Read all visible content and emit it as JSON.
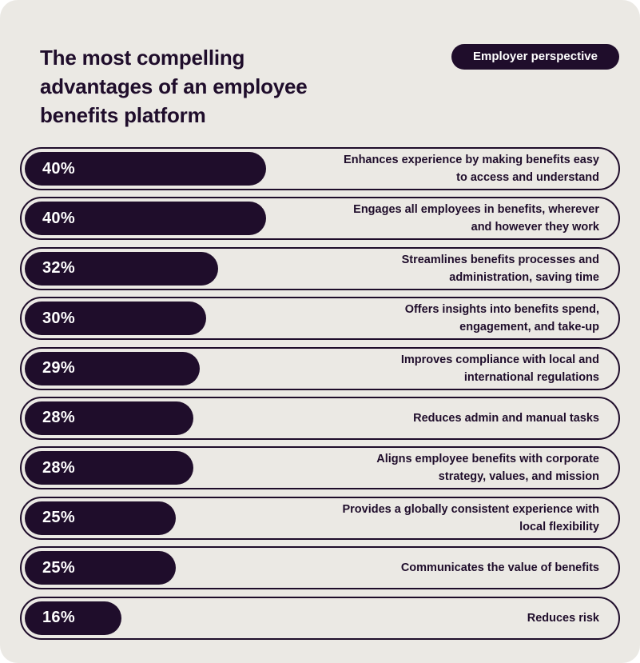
{
  "header": {
    "title": "The most compelling advantages of an employee benefits platform",
    "badge": "Employer perspective"
  },
  "colors": {
    "background": "#ebe9e4",
    "bar": "#1f0d2b",
    "text": "#1f0d2b",
    "bar_text": "#ffffff"
  },
  "chart_data": {
    "type": "bar",
    "orientation": "horizontal",
    "title": "The most compelling advantages of an employee benefits platform",
    "subtitle": "Employer perspective",
    "unit": "%",
    "ylim": [
      0,
      100
    ],
    "categories": [
      "Enhances experience by making benefits easy to access and understand",
      "Engages all employees in benefits, wherever and however they work",
      "Streamlines benefits processes and administration, saving time",
      "Offers insights into benefits spend, engagement, and take-up",
      "Improves compliance with local and international regulations",
      "Reduces admin and manual tasks",
      "Aligns employee benefits with corporate strategy, values, and mission",
      "Provides a globally consistent experience with local flexibility",
      "Communicates the value of benefits",
      "Reduces risk"
    ],
    "values": [
      40,
      40,
      32,
      30,
      29,
      28,
      28,
      25,
      25,
      16
    ],
    "value_labels": [
      "40%",
      "40%",
      "32%",
      "30%",
      "29%",
      "28%",
      "28%",
      "25%",
      "25%",
      "16%"
    ]
  }
}
